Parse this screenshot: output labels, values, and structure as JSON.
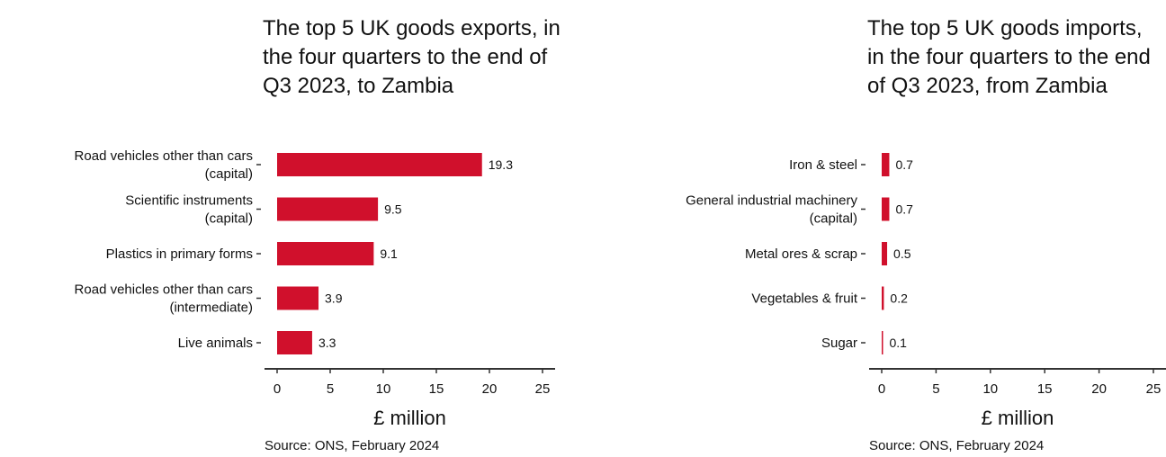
{
  "chart_data": [
    {
      "type": "bar",
      "orientation": "horizontal",
      "title": "The top 5 UK goods exports, in the four quarters to the end of Q3 2023, to Zambia",
      "categories": [
        [
          "Road vehicles other than cars",
          "(capital)"
        ],
        [
          "Scientific instruments",
          "(capital)"
        ],
        [
          "Plastics in primary forms"
        ],
        [
          "Road vehicles other than cars",
          "(intermediate)"
        ],
        [
          "Live animals"
        ]
      ],
      "values": [
        19.3,
        9.5,
        9.1,
        3.9,
        3.3
      ],
      "value_labels": [
        "19.3",
        "9.5",
        "9.1",
        "3.9",
        "3.3"
      ],
      "xlabel": "£ million",
      "xlim": [
        0,
        25
      ],
      "xticks": [
        0,
        5,
        10,
        15,
        20,
        25
      ],
      "grid": false,
      "bar_color": "#d0102c",
      "source": "Source: ONS, February 2024"
    },
    {
      "type": "bar",
      "orientation": "horizontal",
      "title": "The top 5 UK goods imports, in the four quarters to the end of Q3 2023, from Zambia",
      "categories": [
        [
          "Iron & steel"
        ],
        [
          "General industrial machinery",
          "(capital)"
        ],
        [
          "Metal ores & scrap"
        ],
        [
          "Vegetables & fruit"
        ],
        [
          "Sugar"
        ]
      ],
      "values": [
        0.7,
        0.7,
        0.5,
        0.2,
        0.1
      ],
      "value_labels": [
        "0.7",
        "0.7",
        "0.5",
        "0.2",
        "0.1"
      ],
      "xlabel": "£ million",
      "xlim": [
        0,
        25
      ],
      "xticks": [
        0,
        5,
        10,
        15,
        20,
        25
      ],
      "grid": false,
      "bar_color": "#d0102c",
      "source": "Source: ONS, February 2024"
    }
  ]
}
